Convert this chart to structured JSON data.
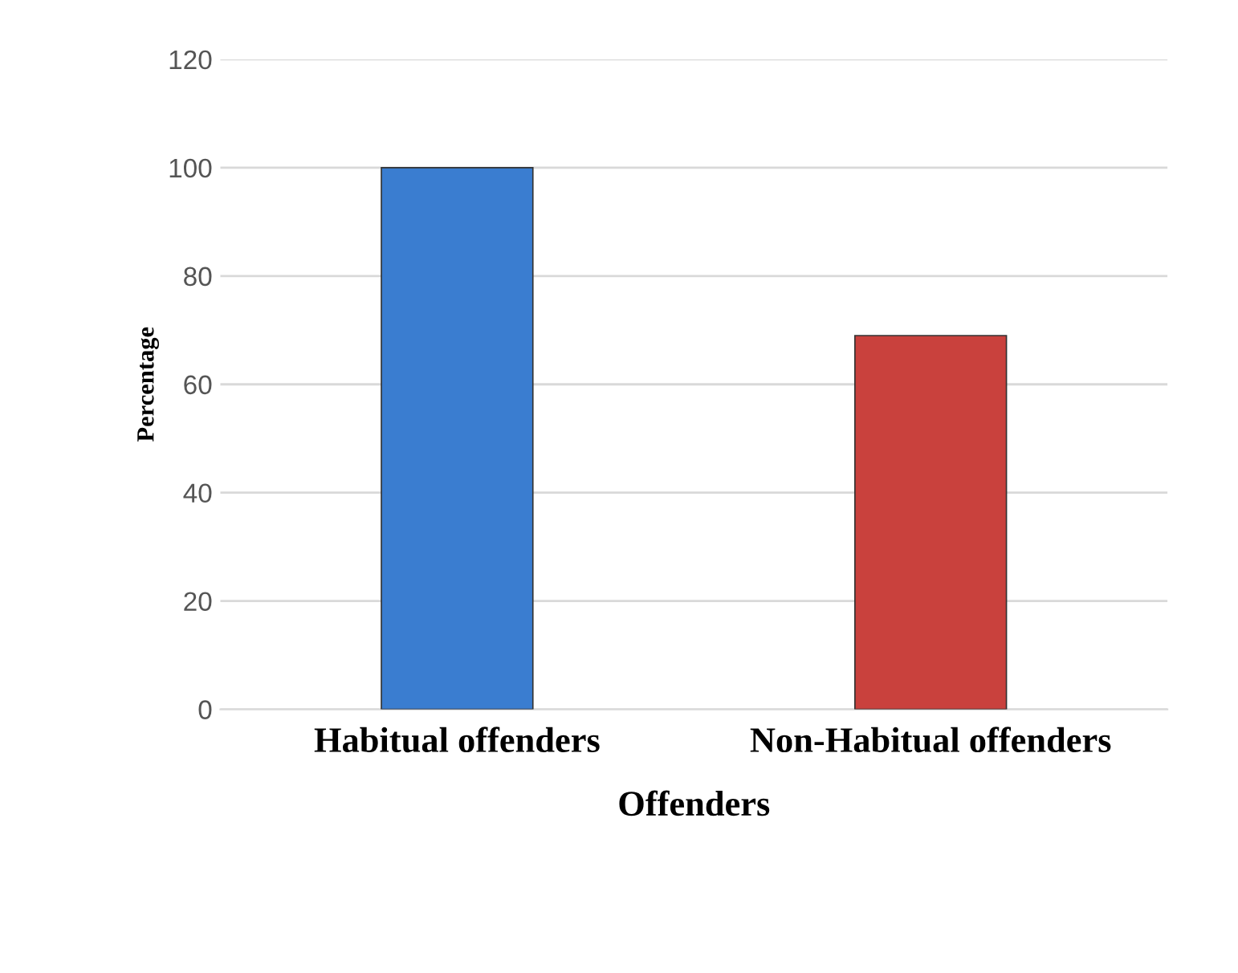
{
  "chart_data": {
    "type": "bar",
    "xlabel": "Offenders",
    "ylabel": "Percentage",
    "categories": [
      "Habitual offenders",
      "Non-Habitual offenders"
    ],
    "values": [
      100,
      69
    ],
    "colors": [
      "#3a7dd0",
      "#c9413d"
    ],
    "ylim": [
      0,
      120
    ],
    "yticks": [
      0,
      20,
      40,
      60,
      80,
      100,
      120
    ],
    "grid": "y",
    "legend": false
  }
}
